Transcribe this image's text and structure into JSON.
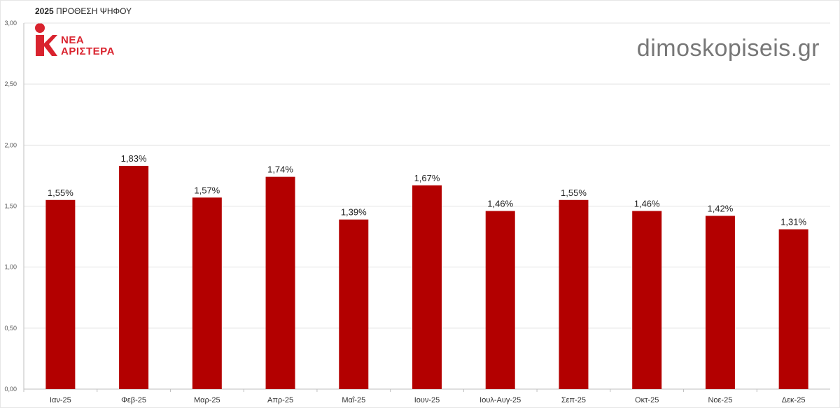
{
  "title": {
    "year": "2025",
    "text": "ΠΡΟΘΕΣΗ ΨΗΦΟΥ"
  },
  "logo": {
    "line1": "ΝΕΑ",
    "line2": "ΑΡΙΣΤΕΡΑ",
    "color": "#d9232e"
  },
  "site": "dimoskopiseis.gr",
  "chart_data": {
    "type": "bar",
    "categories": [
      "Ιαν-25",
      "Φεβ-25",
      "Μαρ-25",
      "Απρ-25",
      "Μαΐ-25",
      "Ιουν-25",
      "Ιουλ-Αυγ-25",
      "Σεπ-25",
      "Οκτ-25",
      "Νοε-25",
      "Δεκ-25"
    ],
    "values": [
      1.55,
      1.83,
      1.57,
      1.74,
      1.39,
      1.67,
      1.46,
      1.55,
      1.46,
      1.42,
      1.31
    ],
    "data_labels": [
      "1,55%",
      "1,83%",
      "1,57%",
      "1,74%",
      "1,39%",
      "1,67%",
      "1,46%",
      "1,55%",
      "1,46%",
      "1,42%",
      "1,31%"
    ],
    "y_ticks": [
      "0,00",
      "0,50",
      "1,00",
      "1,50",
      "2,00",
      "2,50",
      "3,00"
    ],
    "ylim": [
      0,
      3
    ],
    "grid": true,
    "bar_color": "#b30000"
  }
}
